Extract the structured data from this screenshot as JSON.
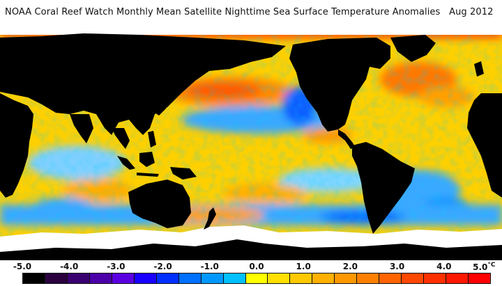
{
  "title": {
    "text": "NOAA Coral Reef Watch Monthly Mean Satellite Nighttime Sea Surface Temperature Anomalies",
    "date": "Aug 2012"
  },
  "map": {
    "projection": "equirectangular",
    "land_color": "#000000",
    "nodata_color": "#ffffff",
    "ocean_base_color": "#ffd000"
  },
  "colorbar": {
    "tick_labels": [
      "-5.0",
      "-4.0",
      "-3.0",
      "-2.0",
      "-1.0",
      "0.0",
      "1.0",
      "2.0",
      "3.0",
      "4.0",
      "5.0"
    ],
    "unit": "°C",
    "colors": [
      "#000000",
      "#2a003f",
      "#3a0070",
      "#4b00a8",
      "#5a00e0",
      "#1a00ff",
      "#0030ff",
      "#0070ff",
      "#0098ff",
      "#00c0ff",
      "#ffff00",
      "#ffe000",
      "#ffc800",
      "#ffb000",
      "#ff9800",
      "#ff8000",
      "#ff6400",
      "#ff4800",
      "#ff3000",
      "#ff1800",
      "#ff0000"
    ]
  }
}
